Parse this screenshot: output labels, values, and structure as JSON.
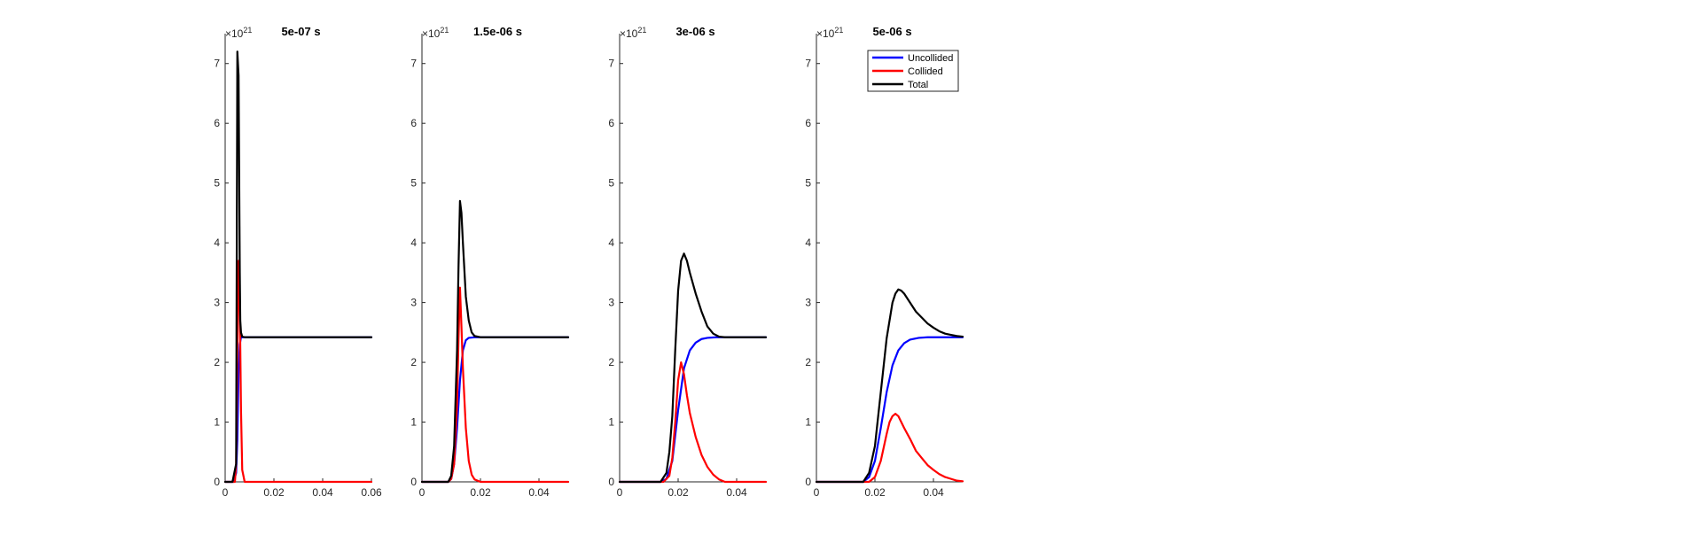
{
  "colors": {
    "uncollided": "#0000ff",
    "collided": "#ff0000",
    "total": "#000000",
    "axis": "#262626"
  },
  "chart_data": [
    {
      "type": "line",
      "title": "5e-07 s",
      "exponent_base": "×10",
      "exponent_power": "21",
      "xlim": [
        0,
        0.06
      ],
      "ylim": [
        0,
        7.5
      ],
      "xticks": [
        0,
        0.02,
        0.04,
        0.06
      ],
      "xtick_labels": [
        "0",
        "0.02",
        "0.04",
        "0.06"
      ],
      "yticks": [
        0,
        1,
        2,
        3,
        4,
        5,
        6,
        7
      ],
      "ytick_labels": [
        "0",
        "1",
        "2",
        "3",
        "4",
        "5",
        "6",
        "7"
      ],
      "legend": false,
      "series": [
        {
          "name": "Uncollided",
          "color_key": "uncollided",
          "x": [
            0,
            0.0035,
            0.0045,
            0.005,
            0.0055,
            0.006,
            0.0065,
            0.008,
            0.06
          ],
          "y": [
            0,
            0,
            0.15,
            0.7,
            1.8,
            2.3,
            2.42,
            2.42,
            2.42
          ]
        },
        {
          "name": "Collided",
          "color_key": "collided",
          "x": [
            0,
            0.004,
            0.0045,
            0.005,
            0.0055,
            0.006,
            0.0065,
            0.007,
            0.008,
            0.06
          ],
          "y": [
            0,
            0,
            0.3,
            2.2,
            3.7,
            3.0,
            1.2,
            0.2,
            0,
            0
          ]
        },
        {
          "name": "Total",
          "color_key": "total",
          "x": [
            0,
            0.003,
            0.004,
            0.0045,
            0.005,
            0.0055,
            0.006,
            0.0062,
            0.0065,
            0.007,
            0.008,
            0.06
          ],
          "y": [
            0,
            0,
            0.2,
            0.3,
            7.2,
            6.8,
            3.5,
            2.7,
            2.5,
            2.43,
            2.42,
            2.42
          ]
        }
      ]
    },
    {
      "type": "line",
      "title": "1.5e-06 s",
      "exponent_base": "×10",
      "exponent_power": "21",
      "xlim": [
        0,
        0.05
      ],
      "ylim": [
        0,
        7.5
      ],
      "xticks": [
        0,
        0.02,
        0.04
      ],
      "xtick_labels": [
        "0",
        "0.02",
        "0.04"
      ],
      "yticks": [
        0,
        1,
        2,
        3,
        4,
        5,
        6,
        7
      ],
      "ytick_labels": [
        "0",
        "1",
        "2",
        "3",
        "4",
        "5",
        "6",
        "7"
      ],
      "legend": false,
      "series": [
        {
          "name": "Uncollided",
          "color_key": "uncollided",
          "x": [
            0,
            0.009,
            0.01,
            0.011,
            0.012,
            0.013,
            0.014,
            0.015,
            0.016,
            0.018,
            0.05
          ],
          "y": [
            0,
            0,
            0.05,
            0.3,
            0.9,
            1.7,
            2.2,
            2.37,
            2.41,
            2.42,
            2.42
          ]
        },
        {
          "name": "Collided",
          "color_key": "collided",
          "x": [
            0,
            0.009,
            0.01,
            0.011,
            0.012,
            0.0125,
            0.013,
            0.0135,
            0.014,
            0.015,
            0.016,
            0.017,
            0.018,
            0.02,
            0.05
          ],
          "y": [
            0,
            0,
            0.05,
            0.3,
            1.3,
            2.4,
            3.25,
            2.6,
            1.9,
            0.9,
            0.35,
            0.12,
            0.04,
            0,
            0
          ]
        },
        {
          "name": "Total",
          "color_key": "total",
          "x": [
            0,
            0.009,
            0.01,
            0.011,
            0.012,
            0.0125,
            0.013,
            0.0135,
            0.014,
            0.015,
            0.016,
            0.017,
            0.018,
            0.02,
            0.05
          ],
          "y": [
            0,
            0,
            0.1,
            0.6,
            2.2,
            3.6,
            4.7,
            4.5,
            4.0,
            3.1,
            2.7,
            2.5,
            2.44,
            2.42,
            2.42
          ]
        }
      ]
    },
    {
      "type": "line",
      "title": "3e-06 s",
      "exponent_base": "×10",
      "exponent_power": "21",
      "xlim": [
        0,
        0.05
      ],
      "ylim": [
        0,
        7.5
      ],
      "xticks": [
        0,
        0.02,
        0.04
      ],
      "xtick_labels": [
        "0",
        "0.02",
        "0.04"
      ],
      "yticks": [
        0,
        1,
        2,
        3,
        4,
        5,
        6,
        7
      ],
      "ytick_labels": [
        "0",
        "1",
        "2",
        "3",
        "4",
        "5",
        "6",
        "7"
      ],
      "legend": false,
      "series": [
        {
          "name": "Uncollided",
          "color_key": "uncollided",
          "x": [
            0,
            0.014,
            0.016,
            0.018,
            0.02,
            0.022,
            0.024,
            0.026,
            0.028,
            0.03,
            0.033,
            0.05
          ],
          "y": [
            0,
            0,
            0.05,
            0.35,
            1.2,
            1.9,
            2.2,
            2.33,
            2.39,
            2.41,
            2.42,
            2.42
          ]
        },
        {
          "name": "Collided",
          "color_key": "collided",
          "x": [
            0,
            0.015,
            0.017,
            0.018,
            0.019,
            0.02,
            0.021,
            0.022,
            0.023,
            0.024,
            0.026,
            0.028,
            0.03,
            0.032,
            0.034,
            0.036,
            0.05
          ],
          "y": [
            0,
            0,
            0.1,
            0.4,
            1.0,
            1.7,
            2.0,
            1.8,
            1.45,
            1.15,
            0.75,
            0.45,
            0.25,
            0.12,
            0.04,
            0,
            0
          ]
        },
        {
          "name": "Total",
          "color_key": "total",
          "x": [
            0,
            0.014,
            0.016,
            0.017,
            0.018,
            0.019,
            0.02,
            0.021,
            0.022,
            0.023,
            0.024,
            0.026,
            0.028,
            0.03,
            0.032,
            0.034,
            0.036,
            0.05
          ],
          "y": [
            0,
            0,
            0.15,
            0.5,
            1.1,
            2.2,
            3.2,
            3.7,
            3.82,
            3.7,
            3.5,
            3.15,
            2.85,
            2.6,
            2.48,
            2.43,
            2.42,
            2.42
          ]
        }
      ]
    },
    {
      "type": "line",
      "title": "5e-06 s",
      "exponent_base": "×10",
      "exponent_power": "21",
      "xlim": [
        0,
        0.05
      ],
      "ylim": [
        0,
        7.5
      ],
      "xticks": [
        0,
        0.02,
        0.04
      ],
      "xtick_labels": [
        "0",
        "0.02",
        "0.04"
      ],
      "yticks": [
        0,
        1,
        2,
        3,
        4,
        5,
        6,
        7
      ],
      "ytick_labels": [
        "0",
        "1",
        "2",
        "3",
        "4",
        "5",
        "6",
        "7"
      ],
      "legend": true,
      "legend_location": "top-right",
      "series": [
        {
          "name": "Uncollided",
          "color_key": "uncollided",
          "x": [
            0,
            0.016,
            0.018,
            0.02,
            0.022,
            0.024,
            0.026,
            0.028,
            0.03,
            0.032,
            0.035,
            0.038,
            0.042,
            0.046,
            0.05
          ],
          "y": [
            0,
            0,
            0.08,
            0.35,
            0.9,
            1.5,
            1.95,
            2.2,
            2.32,
            2.38,
            2.41,
            2.42,
            2.42,
            2.42,
            2.42
          ]
        },
        {
          "name": "Collided",
          "color_key": "collided",
          "x": [
            0,
            0.018,
            0.02,
            0.022,
            0.024,
            0.025,
            0.026,
            0.027,
            0.028,
            0.029,
            0.03,
            0.032,
            0.034,
            0.036,
            0.038,
            0.04,
            0.042,
            0.044,
            0.046,
            0.048,
            0.05
          ],
          "y": [
            0,
            0,
            0.08,
            0.35,
            0.8,
            1.0,
            1.1,
            1.14,
            1.1,
            1.0,
            0.9,
            0.72,
            0.52,
            0.4,
            0.28,
            0.2,
            0.13,
            0.08,
            0.05,
            0.02,
            0.01
          ]
        },
        {
          "name": "Total",
          "color_key": "total",
          "x": [
            0,
            0.016,
            0.018,
            0.02,
            0.022,
            0.024,
            0.026,
            0.027,
            0.028,
            0.029,
            0.03,
            0.032,
            0.034,
            0.036,
            0.038,
            0.04,
            0.042,
            0.044,
            0.046,
            0.048,
            0.05
          ],
          "y": [
            0,
            0,
            0.15,
            0.6,
            1.5,
            2.4,
            3.0,
            3.15,
            3.22,
            3.2,
            3.15,
            3.0,
            2.85,
            2.75,
            2.65,
            2.58,
            2.52,
            2.48,
            2.46,
            2.44,
            2.43
          ]
        }
      ]
    }
  ],
  "legend_entries": [
    "Uncollided",
    "Collided",
    "Total"
  ]
}
